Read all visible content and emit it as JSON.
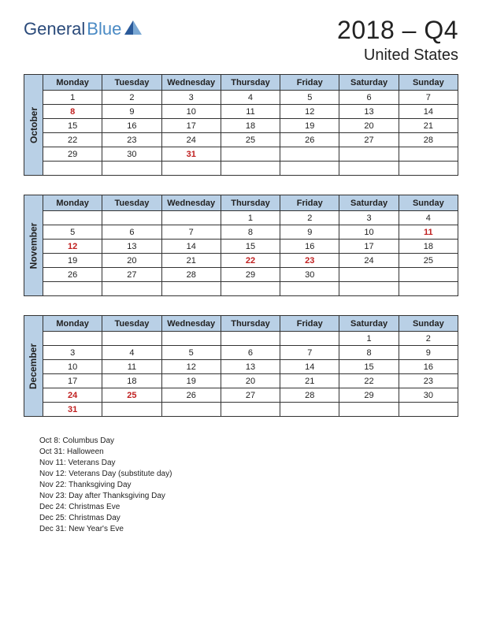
{
  "logo": {
    "part1": "General",
    "part2": "Blue"
  },
  "title": {
    "yearq": "2018 – Q4",
    "country": "United States"
  },
  "day_headers": [
    "Monday",
    "Tuesday",
    "Wednesday",
    "Thursday",
    "Friday",
    "Saturday",
    "Sunday"
  ],
  "colors": {
    "header_bg": "#b9d0e6",
    "border": "#333333",
    "holiday_text": "#c02020",
    "page_bg": "#ffffff"
  },
  "months": [
    {
      "name": "October",
      "weeks": [
        [
          {
            "d": "1"
          },
          {
            "d": "2"
          },
          {
            "d": "3"
          },
          {
            "d": "4"
          },
          {
            "d": "5"
          },
          {
            "d": "6"
          },
          {
            "d": "7"
          }
        ],
        [
          {
            "d": "8",
            "h": true
          },
          {
            "d": "9"
          },
          {
            "d": "10"
          },
          {
            "d": "11"
          },
          {
            "d": "12"
          },
          {
            "d": "13"
          },
          {
            "d": "14"
          }
        ],
        [
          {
            "d": "15"
          },
          {
            "d": "16"
          },
          {
            "d": "17"
          },
          {
            "d": "18"
          },
          {
            "d": "19"
          },
          {
            "d": "20"
          },
          {
            "d": "21"
          }
        ],
        [
          {
            "d": "22"
          },
          {
            "d": "23"
          },
          {
            "d": "24"
          },
          {
            "d": "25"
          },
          {
            "d": "26"
          },
          {
            "d": "27"
          },
          {
            "d": "28"
          }
        ],
        [
          {
            "d": "29"
          },
          {
            "d": "30"
          },
          {
            "d": "31",
            "h": true
          },
          {
            "d": ""
          },
          {
            "d": ""
          },
          {
            "d": ""
          },
          {
            "d": ""
          }
        ],
        [
          {
            "d": ""
          },
          {
            "d": ""
          },
          {
            "d": ""
          },
          {
            "d": ""
          },
          {
            "d": ""
          },
          {
            "d": ""
          },
          {
            "d": ""
          }
        ]
      ]
    },
    {
      "name": "November",
      "weeks": [
        [
          {
            "d": ""
          },
          {
            "d": ""
          },
          {
            "d": ""
          },
          {
            "d": "1"
          },
          {
            "d": "2"
          },
          {
            "d": "3"
          },
          {
            "d": "4"
          }
        ],
        [
          {
            "d": "5"
          },
          {
            "d": "6"
          },
          {
            "d": "7"
          },
          {
            "d": "8"
          },
          {
            "d": "9"
          },
          {
            "d": "10"
          },
          {
            "d": "11",
            "h": true
          }
        ],
        [
          {
            "d": "12",
            "h": true
          },
          {
            "d": "13"
          },
          {
            "d": "14"
          },
          {
            "d": "15"
          },
          {
            "d": "16"
          },
          {
            "d": "17"
          },
          {
            "d": "18"
          }
        ],
        [
          {
            "d": "19"
          },
          {
            "d": "20"
          },
          {
            "d": "21"
          },
          {
            "d": "22",
            "h": true
          },
          {
            "d": "23",
            "h": true
          },
          {
            "d": "24"
          },
          {
            "d": "25"
          }
        ],
        [
          {
            "d": "26"
          },
          {
            "d": "27"
          },
          {
            "d": "28"
          },
          {
            "d": "29"
          },
          {
            "d": "30"
          },
          {
            "d": ""
          },
          {
            "d": ""
          }
        ],
        [
          {
            "d": ""
          },
          {
            "d": ""
          },
          {
            "d": ""
          },
          {
            "d": ""
          },
          {
            "d": ""
          },
          {
            "d": ""
          },
          {
            "d": ""
          }
        ]
      ]
    },
    {
      "name": "December",
      "weeks": [
        [
          {
            "d": ""
          },
          {
            "d": ""
          },
          {
            "d": ""
          },
          {
            "d": ""
          },
          {
            "d": ""
          },
          {
            "d": "1"
          },
          {
            "d": "2"
          }
        ],
        [
          {
            "d": "3"
          },
          {
            "d": "4"
          },
          {
            "d": "5"
          },
          {
            "d": "6"
          },
          {
            "d": "7"
          },
          {
            "d": "8"
          },
          {
            "d": "9"
          }
        ],
        [
          {
            "d": "10"
          },
          {
            "d": "11"
          },
          {
            "d": "12"
          },
          {
            "d": "13"
          },
          {
            "d": "14"
          },
          {
            "d": "15"
          },
          {
            "d": "16"
          }
        ],
        [
          {
            "d": "17"
          },
          {
            "d": "18"
          },
          {
            "d": "19"
          },
          {
            "d": "20"
          },
          {
            "d": "21"
          },
          {
            "d": "22"
          },
          {
            "d": "23"
          }
        ],
        [
          {
            "d": "24",
            "h": true
          },
          {
            "d": "25",
            "h": true
          },
          {
            "d": "26"
          },
          {
            "d": "27"
          },
          {
            "d": "28"
          },
          {
            "d": "29"
          },
          {
            "d": "30"
          }
        ],
        [
          {
            "d": "31",
            "h": true
          },
          {
            "d": ""
          },
          {
            "d": ""
          },
          {
            "d": ""
          },
          {
            "d": ""
          },
          {
            "d": ""
          },
          {
            "d": ""
          }
        ]
      ]
    }
  ],
  "holidays": [
    "Oct 8: Columbus Day",
    "Oct 31: Halloween",
    "Nov 11: Veterans Day",
    "Nov 12: Veterans Day (substitute day)",
    "Nov 22: Thanksgiving Day",
    "Nov 23: Day after Thanksgiving Day",
    "Dec 24: Christmas Eve",
    "Dec 25: Christmas Day",
    "Dec 31: New Year's Eve"
  ]
}
